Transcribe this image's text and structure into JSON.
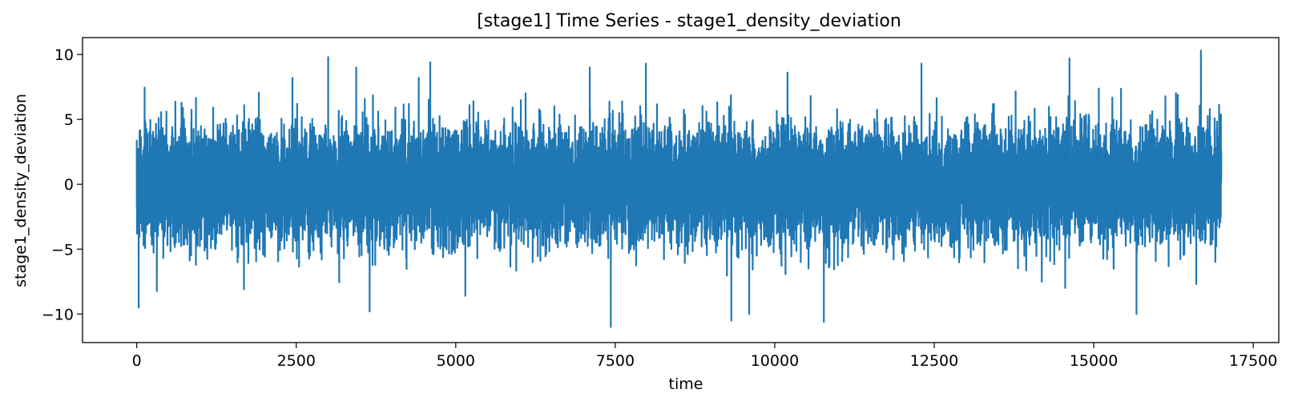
{
  "chart_data": {
    "type": "line",
    "title": "[stage1] Time Series - stage1_density_deviation",
    "xlabel": "time",
    "ylabel": "stage1_density_deviation",
    "xlim": [
      -850,
      17900
    ],
    "ylim": [
      -12.2,
      11.3
    ],
    "xticks": [
      0,
      2500,
      5000,
      7500,
      10000,
      12500,
      15000,
      17500
    ],
    "xtick_labels": [
      "0",
      "2500",
      "5000",
      "7500",
      "10000",
      "12500",
      "15000",
      "17500"
    ],
    "yticks": [
      -10,
      -5,
      0,
      5,
      10
    ],
    "ytick_labels": [
      "−10",
      "−5",
      "0",
      "5",
      "10"
    ],
    "grid": false,
    "legend": "none",
    "color": "#1f77b4",
    "series": [
      {
        "x_start": 0,
        "x_end": 17000,
        "n_points": 17000,
        "mean": 0,
        "std": 2.1,
        "extremes": [
          {
            "x": 30,
            "y": -9.5
          },
          {
            "x": 1680,
            "y": -8.1
          },
          {
            "x": 2440,
            "y": 8.2
          },
          {
            "x": 3000,
            "y": 9.8
          },
          {
            "x": 3440,
            "y": 9.0
          },
          {
            "x": 3650,
            "y": -9.8
          },
          {
            "x": 4420,
            "y": 8.2
          },
          {
            "x": 4600,
            "y": 9.4
          },
          {
            "x": 5150,
            "y": -8.6
          },
          {
            "x": 7100,
            "y": 9.0
          },
          {
            "x": 7430,
            "y": -11.0
          },
          {
            "x": 7980,
            "y": 9.3
          },
          {
            "x": 9320,
            "y": -10.5
          },
          {
            "x": 9600,
            "y": -10.0
          },
          {
            "x": 10200,
            "y": 8.6
          },
          {
            "x": 10770,
            "y": -10.6
          },
          {
            "x": 12300,
            "y": 9.3
          },
          {
            "x": 14620,
            "y": 9.7
          },
          {
            "x": 15670,
            "y": -10.0
          },
          {
            "x": 16680,
            "y": 10.3
          }
        ]
      }
    ]
  }
}
